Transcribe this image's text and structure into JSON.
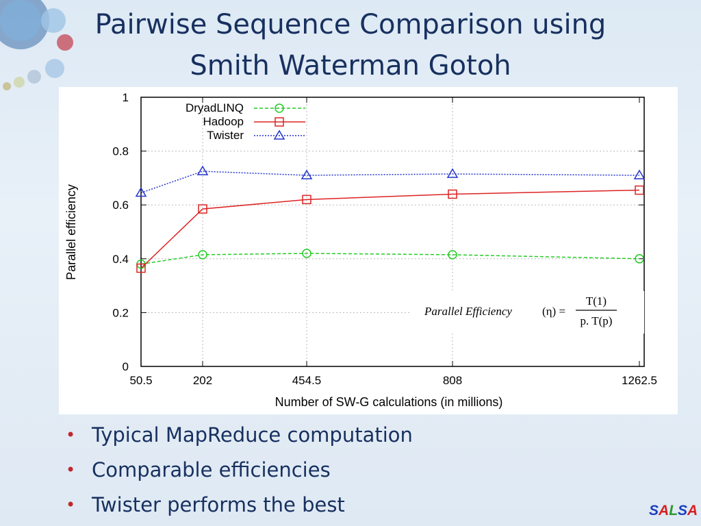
{
  "slide": {
    "title_line1": "Pairwise Sequence Comparison using",
    "title_line2": "Smith Waterman Gotoh",
    "bullets": [
      "Typical MapReduce computation",
      "Comparable efficiencies",
      "Twister performs the best"
    ],
    "logo": {
      "letters": [
        "S",
        "A",
        "L",
        "S",
        "A"
      ],
      "colors": [
        "#1a3fbf",
        "#d62020",
        "#2a9a2a",
        "#1a3fbf",
        "#d62020"
      ]
    }
  },
  "chart_data": {
    "type": "line",
    "x": [
      50.5,
      202,
      454.5,
      808,
      1262.5
    ],
    "x_tick_labels": [
      "50.5",
      "202",
      "454.5",
      "808",
      "1262.5"
    ],
    "y_ticks": [
      "0",
      "0.2",
      "0.4",
      "0.6",
      "0.8",
      "1"
    ],
    "ylim": [
      0,
      1
    ],
    "xlabel": "Number of SW-G calculations (in millions)",
    "ylabel": "Parallel efficiency",
    "grid": true,
    "legend_position": "top-left",
    "series": [
      {
        "name": "DryadLINQ",
        "values": [
          0.38,
          0.415,
          0.42,
          0.415,
          0.4
        ],
        "color": "#22cc22",
        "marker": "circle",
        "dash": "dashed"
      },
      {
        "name": "Hadoop",
        "values": [
          0.365,
          0.585,
          0.62,
          0.64,
          0.655
        ],
        "color": "#dd2222",
        "marker": "square",
        "dash": "solid"
      },
      {
        "name": "Twister",
        "values": [
          0.645,
          0.725,
          0.71,
          0.715,
          0.71
        ],
        "color": "#2233cc",
        "marker": "triangle",
        "dash": "dotted"
      }
    ],
    "formula": {
      "lhs": "Parallel Efficiency",
      "symbol": "(η) =",
      "numerator": "T(1)",
      "denominator": "p. T(p)"
    }
  }
}
